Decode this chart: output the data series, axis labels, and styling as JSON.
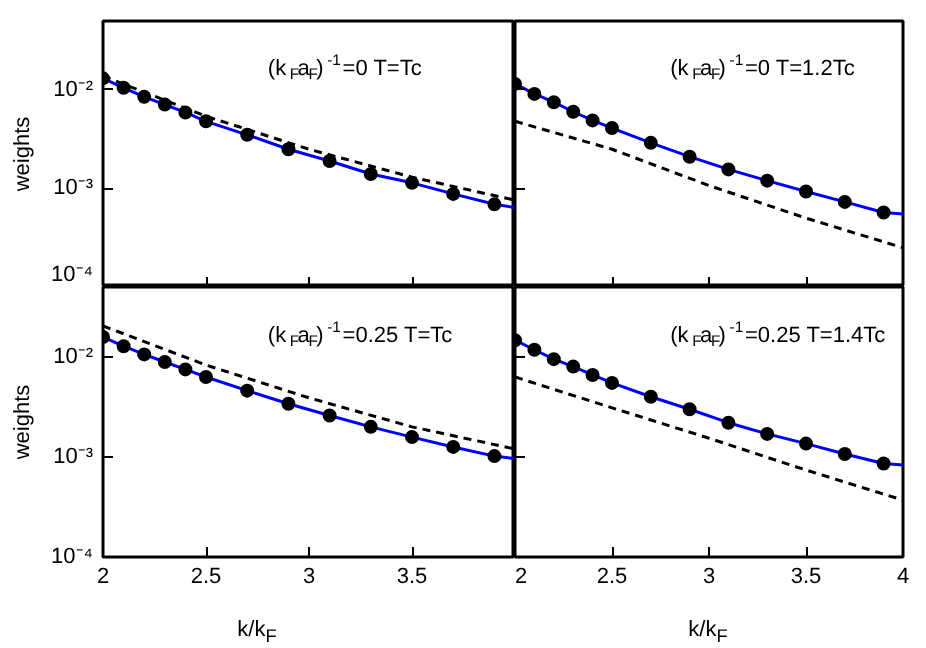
{
  "chart_data": [
    {
      "type": "line",
      "ylabel": "weights",
      "log": "y",
      "xlim": [
        2,
        4
      ],
      "ylim": [
        0.0001,
        0.05
      ],
      "tick_labels": "y",
      "xticks": [
        2,
        2.5,
        3,
        3.5,
        4
      ],
      "yticks": [
        {
          "value": 0.0001,
          "label": "10⁻⁴"
        },
        {
          "value": 0.001,
          "label": "10⁻³"
        },
        {
          "value": 0.01,
          "label": "10⁻²"
        }
      ],
      "annotations": [
        "(k$_{F}$a$_{F}$)$^{-1}$=0   T=Tc"
      ],
      "series": [
        {
          "color": "#0000ff",
          "x": [
            2,
            2.1,
            2.2,
            2.3,
            2.4,
            2.5,
            2.7,
            2.9,
            3.1,
            3.3,
            3.5,
            3.7,
            3.9,
            4
          ],
          "values": [
            0.0131,
            0.0105,
            0.0085,
            0.0071,
            0.0059,
            0.0048,
            0.0035,
            0.0025,
            0.0019,
            0.0014,
            0.00114,
            0.00088,
            0.00069,
            0.00064
          ]
        },
        {
          "type": "scatter",
          "marker": "circle",
          "color": "#000000",
          "x": [
            2,
            2.1,
            2.2,
            2.3,
            2.4,
            2.5,
            2.7,
            2.9,
            3.1,
            3.3,
            3.5,
            3.7,
            3.9
          ],
          "values": [
            0.0131,
            0.0105,
            0.0085,
            0.0071,
            0.0059,
            0.0048,
            0.0035,
            0.0025,
            0.0019,
            0.0014,
            0.00114,
            0.00088,
            0.00069
          ]
        },
        {
          "line_style": "dashed",
          "color": "#000000",
          "x": [
            2,
            2.5,
            3,
            3.5,
            4
          ],
          "values": [
            0.0138,
            0.0054,
            0.0025,
            0.0013,
            0.00076
          ]
        }
      ]
    },
    {
      "type": "line",
      "log": "y",
      "xlim": [
        2,
        4
      ],
      "ylim": [
        0.0001,
        0.05
      ],
      "tick_labels": false,
      "xticks": [
        2,
        2.5,
        3,
        3.5,
        4
      ],
      "yticks": [
        0.0001,
        0.001,
        0.01
      ],
      "annotations": [
        "(k$_{F}$a$_{F}$)$^{-1}$=0   T=1.2Tc"
      ],
      "series": [
        {
          "color": "#0000ff",
          "x": [
            2,
            2.1,
            2.2,
            2.3,
            2.4,
            2.5,
            2.7,
            2.9,
            3.1,
            3.3,
            3.5,
            3.7,
            3.9,
            4
          ],
          "values": [
            0.0115,
            0.0091,
            0.0075,
            0.006,
            0.0049,
            0.0041,
            0.0029,
            0.0021,
            0.00156,
            0.0012,
            0.00093,
            0.00073,
            0.00057,
            0.00055
          ]
        },
        {
          "type": "scatter",
          "marker": "circle",
          "color": "#000000",
          "x": [
            2,
            2.1,
            2.2,
            2.3,
            2.4,
            2.5,
            2.7,
            2.9,
            3.1,
            3.3,
            3.5,
            3.7,
            3.9
          ],
          "values": [
            0.0115,
            0.0091,
            0.0075,
            0.006,
            0.0049,
            0.0041,
            0.0029,
            0.0021,
            0.00156,
            0.0012,
            0.00093,
            0.00073,
            0.00057
          ]
        },
        {
          "line_style": "dashed",
          "color": "#000000",
          "x": [
            2,
            2.5,
            3,
            3.5,
            4
          ],
          "values": [
            0.0048,
            0.0025,
            0.00107,
            0.0005,
            0.00025
          ]
        }
      ]
    },
    {
      "type": "line",
      "xlabel": "k/k$_{F}$",
      "ylabel": "weights",
      "log": "y",
      "xlim": [
        2,
        4
      ],
      "ylim": [
        0.0001,
        0.05
      ],
      "xticks": [
        2,
        2.5,
        3,
        3.5
      ],
      "yticks": [
        {
          "value": 0.0001,
          "label": "10⁻⁴"
        },
        {
          "value": 0.001,
          "label": "10⁻³"
        },
        {
          "value": 0.01,
          "label": "10⁻²"
        }
      ],
      "annotations": [
        "(k$_{F}$a$_{F}$)$^{-1}$=0.25   T=Tc"
      ],
      "series": [
        {
          "color": "#0000ff",
          "x": [
            2,
            2.1,
            2.2,
            2.3,
            2.4,
            2.5,
            2.7,
            2.9,
            3.1,
            3.3,
            3.5,
            3.7,
            3.9,
            4
          ],
          "values": [
            0.0158,
            0.0128,
            0.0106,
            0.0089,
            0.0075,
            0.0063,
            0.0046,
            0.0034,
            0.0026,
            0.002,
            0.00158,
            0.00126,
            0.00102,
            0.00096
          ]
        },
        {
          "type": "scatter",
          "marker": "circle",
          "color": "#000000",
          "x": [
            2,
            2.1,
            2.2,
            2.3,
            2.4,
            2.5,
            2.7,
            2.9,
            3.1,
            3.3,
            3.5,
            3.7,
            3.9
          ],
          "values": [
            0.0158,
            0.0128,
            0.0106,
            0.0089,
            0.0075,
            0.0063,
            0.0046,
            0.0034,
            0.0026,
            0.002,
            0.00158,
            0.00126,
            0.00102
          ]
        },
        {
          "line_style": "dashed",
          "color": "#000000",
          "x": [
            2,
            2.5,
            3,
            3.5,
            4
          ],
          "values": [
            0.0204,
            0.0083,
            0.0039,
            0.002,
            0.0012
          ]
        }
      ]
    },
    {
      "type": "line",
      "xlabel": "k/k$_{F}$",
      "log": "y",
      "xlim": [
        2,
        4
      ],
      "ylim": [
        0.0001,
        0.05
      ],
      "tick_labels": "x",
      "xticks": [
        2,
        2.5,
        3,
        3.5,
        4
      ],
      "yticks": [
        0.0001,
        0.001,
        0.01
      ],
      "annotations": [
        "(k$_{F}$a$_{F}$)$^{-1}$=0.25   T=1.4Tc"
      ],
      "series": [
        {
          "color": "#0000ff",
          "x": [
            2,
            2.1,
            2.2,
            2.3,
            2.4,
            2.5,
            2.7,
            2.9,
            3.1,
            3.3,
            3.5,
            3.7,
            3.9,
            4
          ],
          "values": [
            0.0147,
            0.0118,
            0.0095,
            0.008,
            0.0066,
            0.0055,
            0.004,
            0.003,
            0.0022,
            0.0017,
            0.00136,
            0.00107,
            0.00086,
            0.00083
          ]
        },
        {
          "type": "scatter",
          "marker": "circle",
          "color": "#000000",
          "x": [
            2,
            2.1,
            2.2,
            2.3,
            2.4,
            2.5,
            2.7,
            2.9,
            3.1,
            3.3,
            3.5,
            3.7,
            3.9
          ],
          "values": [
            0.0147,
            0.0118,
            0.0095,
            0.008,
            0.0066,
            0.0055,
            0.004,
            0.003,
            0.0022,
            0.0017,
            0.00136,
            0.00107,
            0.00086
          ]
        },
        {
          "line_style": "dashed",
          "color": "#000000",
          "x": [
            2,
            2.5,
            3,
            3.5,
            4
          ],
          "values": [
            0.0063,
            0.0031,
            0.00154,
            0.00074,
            0.00037
          ]
        }
      ]
    }
  ]
}
